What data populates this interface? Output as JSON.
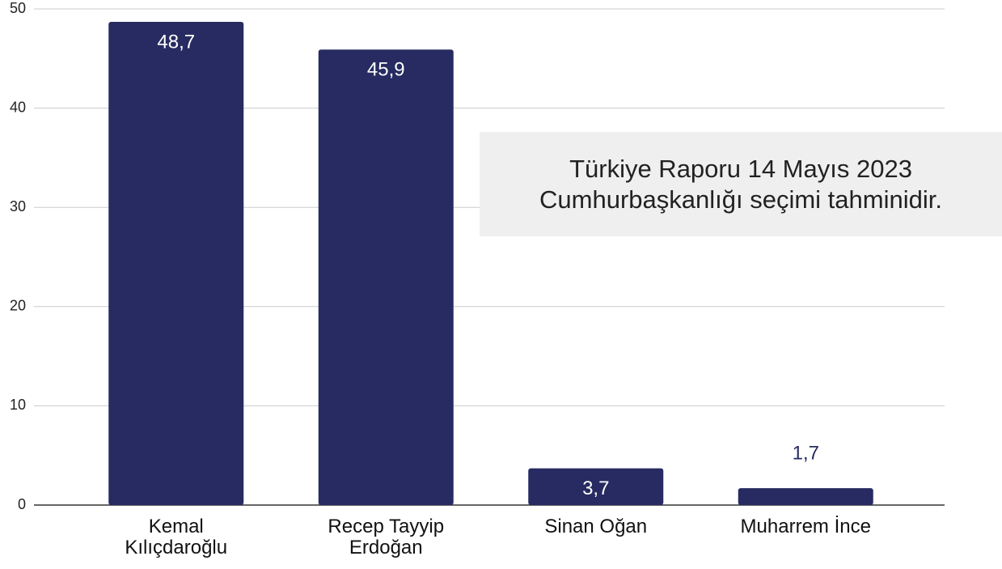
{
  "chart_data": {
    "type": "bar",
    "categories": [
      "Kemal\nKılıçdaroğlu",
      "Recep Tayyip\nErdoğan",
      "Sinan Oğan",
      "Muharrem İnce"
    ],
    "values": [
      48.7,
      45.9,
      3.7,
      1.7
    ],
    "value_labels": [
      "48,7",
      "45,9",
      "3,7",
      "1,7"
    ],
    "color": "#272b61",
    "ylim": [
      0,
      50
    ],
    "yticks": [
      0,
      10,
      20,
      30,
      40,
      50
    ],
    "grid": true,
    "annotation": "Türkiye Raporu 14 Mayıs 2023\nCumhurbaşkanlığı seçimi tahminidir."
  }
}
